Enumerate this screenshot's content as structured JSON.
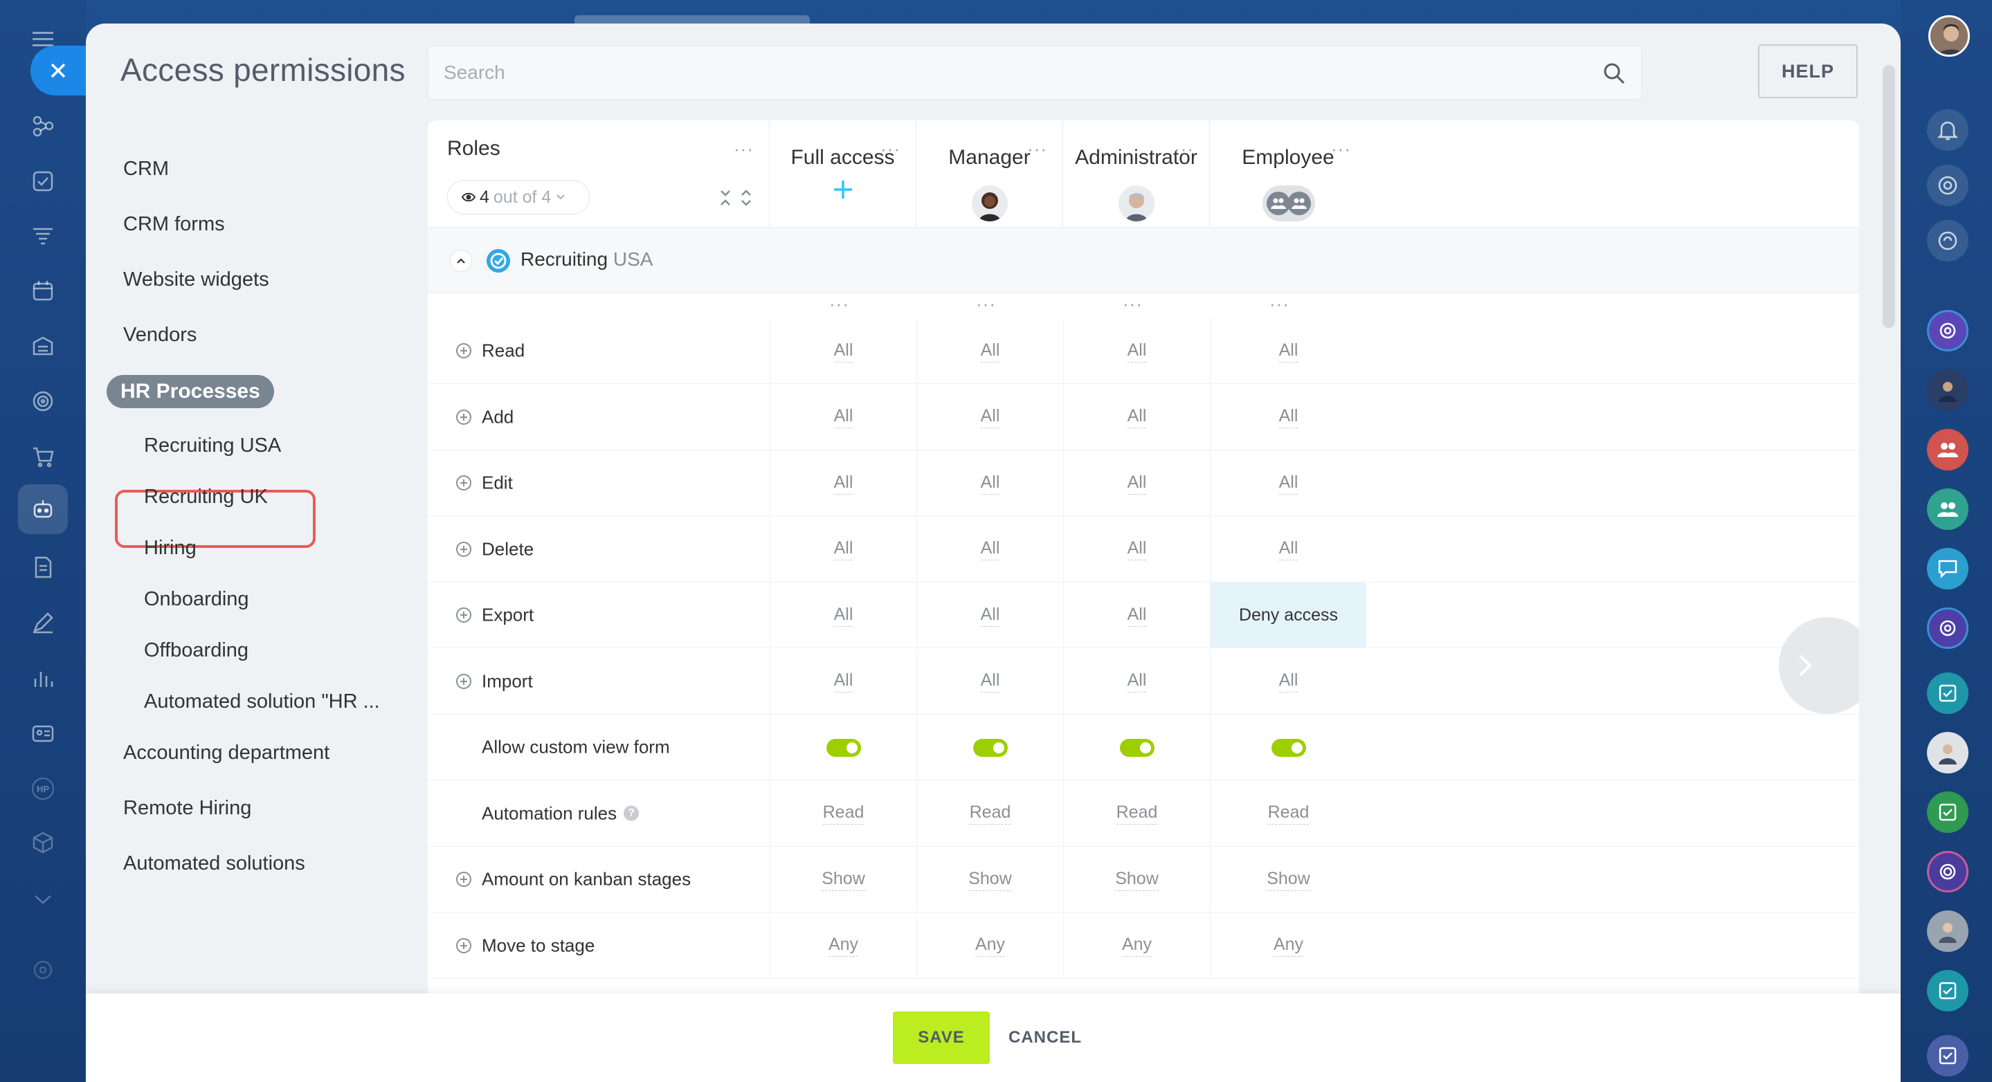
{
  "page": {
    "title": "Access permissions",
    "search_placeholder": "Search",
    "help_label": "HELP"
  },
  "nav": {
    "items": [
      {
        "label": "CRM"
      },
      {
        "label": "CRM forms"
      },
      {
        "label": "Website widgets"
      },
      {
        "label": "Vendors"
      }
    ],
    "group": "HR Processes",
    "subitems": [
      {
        "label": "Recruiting USA"
      },
      {
        "label": "Recruiting UK"
      },
      {
        "label": "Hiring"
      },
      {
        "label": "Onboarding"
      },
      {
        "label": "Offboarding"
      },
      {
        "label": "Automated solution \"HR ..."
      }
    ],
    "bottom_items": [
      {
        "label": "Accounting department"
      },
      {
        "label": "Remote Hiring"
      },
      {
        "label": "Automated solutions"
      }
    ]
  },
  "table": {
    "roles_title": "Roles",
    "roles_filter_count": "4",
    "roles_filter_suffix": "out of 4",
    "columns": [
      {
        "title": "Full access"
      },
      {
        "title": "Manager"
      },
      {
        "title": "Administrator"
      },
      {
        "title": "Employee"
      }
    ],
    "group": {
      "name": "Recruiting",
      "suffix": "USA"
    },
    "rows": [
      {
        "label": "Read",
        "values": [
          "All",
          "All",
          "All",
          "All"
        ]
      },
      {
        "label": "Add",
        "values": [
          "All",
          "All",
          "All",
          "All"
        ]
      },
      {
        "label": "Edit",
        "values": [
          "All",
          "All",
          "All",
          "All"
        ]
      },
      {
        "label": "Delete",
        "values": [
          "All",
          "All",
          "All",
          "All"
        ]
      },
      {
        "label": "Export",
        "values": [
          "All",
          "All",
          "All",
          "Deny access"
        ]
      },
      {
        "label": "Import",
        "values": [
          "All",
          "All",
          "All",
          "All"
        ]
      },
      {
        "label": "Allow custom view form",
        "values": [
          "on",
          "on",
          "on",
          "on"
        ]
      },
      {
        "label": "Automation rules",
        "values": [
          "Read",
          "Read",
          "Read",
          "Read"
        ]
      },
      {
        "label": "Amount on kanban stages",
        "values": [
          "Show",
          "Show",
          "Show",
          "Show"
        ]
      },
      {
        "label": "Move to stage",
        "values": [
          "Any",
          "Any",
          "Any",
          "Any"
        ]
      }
    ]
  },
  "footer": {
    "save_label": "SAVE",
    "cancel_label": "CANCEL"
  },
  "colors": {
    "accent": "#bbed21",
    "selected_outline": "#e95b57",
    "toggle_on": "#9dcf00",
    "rail": "#1d4a88"
  }
}
